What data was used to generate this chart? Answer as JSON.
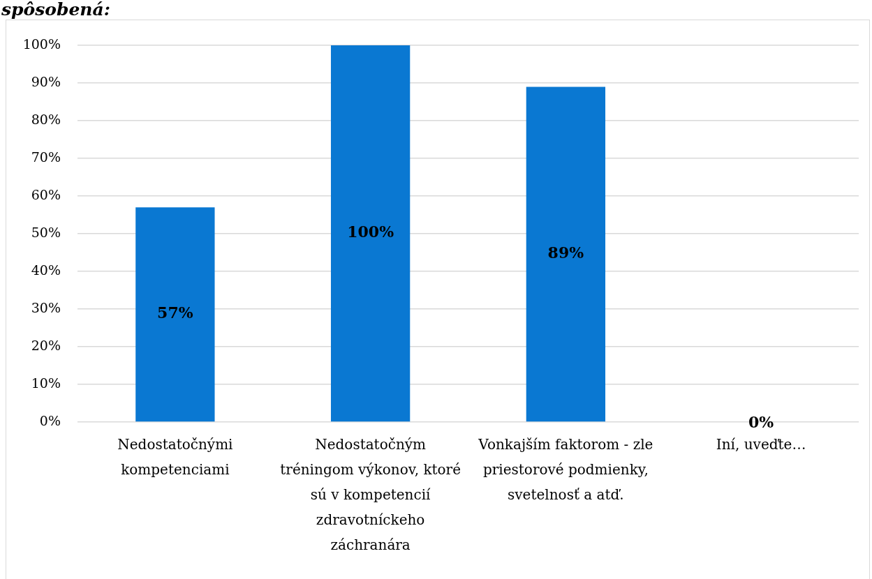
{
  "chart_data": {
    "type": "bar",
    "title": "spôsobená:",
    "categories": [
      "Nedostatočnými kompetenciami",
      "Nedostatočným tréningom výkonov, ktoré sú v kompetencií zdravotníckeho záchranára",
      "Vonkajším faktorom - zle priestorové podmienky, svetelnosť a atď.",
      "Iní, uveďte…"
    ],
    "values": [
      57,
      100,
      89,
      0
    ],
    "color": "#0a78d2",
    "value_labels": [
      "57%",
      "100%",
      "89%",
      "0%"
    ],
    "ylim": [
      0,
      100
    ],
    "yticks": [
      {
        "value": 0,
        "label": "0%"
      },
      {
        "value": 10,
        "label": "10%"
      },
      {
        "value": 20,
        "label": "20%"
      },
      {
        "value": 30,
        "label": "30%"
      },
      {
        "value": 40,
        "label": "40%"
      },
      {
        "value": 50,
        "label": "50%"
      },
      {
        "value": 60,
        "label": "60%"
      },
      {
        "value": 70,
        "label": "70%"
      },
      {
        "value": 80,
        "label": "80%"
      },
      {
        "value": 90,
        "label": "90%"
      },
      {
        "value": 100,
        "label": "100%"
      }
    ],
    "grid": "y"
  }
}
